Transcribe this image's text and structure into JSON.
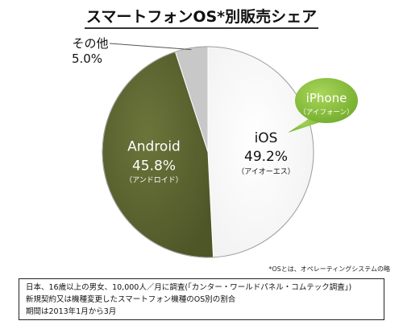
{
  "title": "スマートフォンOS*別販売シェア",
  "chart_data": {
    "type": "pie",
    "title": "スマートフォンOS*別販売シェア",
    "start_angle_deg": 0,
    "direction": "clockwise",
    "slices": [
      {
        "name": "iOS",
        "reading": "（アイオーエス）",
        "value": 49.2,
        "value_label": "49.2%",
        "color": "#ffffff"
      },
      {
        "name": "Android",
        "reading": "（アンドロイド）",
        "value": 45.8,
        "value_label": "45.8%",
        "color": "#5a6430"
      },
      {
        "name": "その他",
        "value": 5.0,
        "value_label": "5.0%",
        "color": "#c8c8c8"
      }
    ],
    "callout": {
      "label": "iPhone",
      "reading": "（アイフォーン）",
      "color": "#8dc63f"
    }
  },
  "footnote": "*OSとは、オペレーティングシステムの略",
  "source": {
    "lines": [
      "日本、16歳以上の男女、10,000人／月に調査(「カンター・ワールドパネル・コムテック調査」)",
      "新規契約又は機種変更したスマートフォン機種のOS別の割合",
      "期間は2013年1月から3月"
    ]
  }
}
